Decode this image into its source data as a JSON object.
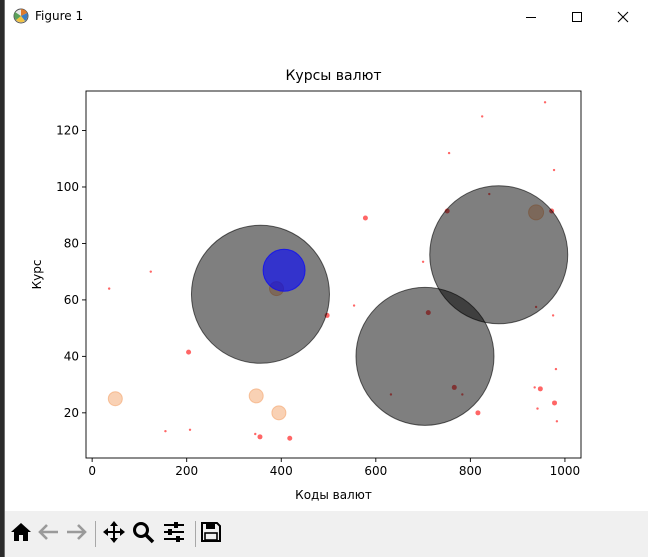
{
  "window": {
    "title": "Figure 1",
    "icons": [
      "matplotlib-icon",
      "minimize-icon",
      "maximize-icon",
      "close-icon"
    ]
  },
  "toolbar": {
    "buttons": [
      {
        "name": "home-icon"
      },
      {
        "name": "back-icon"
      },
      {
        "name": "forward-icon"
      },
      {
        "name": "pan-icon"
      },
      {
        "name": "zoom-icon"
      },
      {
        "name": "configure-subplots-icon"
      },
      {
        "name": "save-icon"
      }
    ]
  },
  "chart_data": {
    "type": "scatter",
    "title": "Курсы валют",
    "xlabel": "Коды валют",
    "ylabel": "Курс",
    "xlim": [
      -13,
      1034
    ],
    "ylim": [
      4,
      134
    ],
    "xticks": [
      0,
      200,
      400,
      600,
      800,
      1000
    ],
    "yticks": [
      20,
      40,
      60,
      80,
      100,
      120
    ],
    "grid": false,
    "series": [
      {
        "color": "#ff0000",
        "alpha": 0.6,
        "points": [
          {
            "x": 36,
            "y": 64,
            "r": 1.2
          },
          {
            "x": 124,
            "y": 70,
            "r": 1.2
          },
          {
            "x": 155,
            "y": 13.5,
            "r": 1.2
          },
          {
            "x": 204,
            "y": 41.5,
            "r": 2.5
          },
          {
            "x": 207,
            "y": 14,
            "r": 1.2
          },
          {
            "x": 345,
            "y": 12.5,
            "r": 1.2
          },
          {
            "x": 355,
            "y": 11.5,
            "r": 2.5
          },
          {
            "x": 418,
            "y": 11,
            "r": 2.5
          },
          {
            "x": 497,
            "y": 54.5,
            "r": 2.5
          },
          {
            "x": 554,
            "y": 58,
            "r": 1.2
          },
          {
            "x": 578,
            "y": 89,
            "r": 2.5
          },
          {
            "x": 632,
            "y": 26.5,
            "r": 1.2
          },
          {
            "x": 700,
            "y": 73.5,
            "r": 1.2
          },
          {
            "x": 711,
            "y": 55.5,
            "r": 2.5
          },
          {
            "x": 751,
            "y": 91.5,
            "r": 2.5
          },
          {
            "x": 755,
            "y": 112,
            "r": 1.2
          },
          {
            "x": 766,
            "y": 29,
            "r": 2.5
          },
          {
            "x": 783,
            "y": 26.5,
            "r": 1.2
          },
          {
            "x": 816,
            "y": 20,
            "r": 2.5
          },
          {
            "x": 825,
            "y": 125,
            "r": 1.2
          },
          {
            "x": 840,
            "y": 97.5,
            "r": 1.2
          },
          {
            "x": 936,
            "y": 29,
            "r": 1.2
          },
          {
            "x": 939,
            "y": 57.5,
            "r": 1.2
          },
          {
            "x": 942,
            "y": 21.5,
            "r": 1.2
          },
          {
            "x": 948,
            "y": 28.5,
            "r": 2.5
          },
          {
            "x": 958,
            "y": 130,
            "r": 1.2
          },
          {
            "x": 972,
            "y": 91.5,
            "r": 2.5
          },
          {
            "x": 975,
            "y": 54.5,
            "r": 1.2
          },
          {
            "x": 977,
            "y": 106,
            "r": 1.2
          },
          {
            "x": 978,
            "y": 23.5,
            "r": 2.5
          },
          {
            "x": 981,
            "y": 35.5,
            "r": 1.2
          },
          {
            "x": 983,
            "y": 17,
            "r": 1.2
          }
        ]
      },
      {
        "color": "#f4a46a",
        "alpha": 0.5,
        "points": [
          {
            "x": 49,
            "y": 25,
            "r": 7
          },
          {
            "x": 347,
            "y": 26,
            "r": 7
          },
          {
            "x": 395,
            "y": 20,
            "r": 7
          },
          {
            "x": 390,
            "y": 64,
            "r": 7
          },
          {
            "x": 939,
            "y": 91,
            "r": 7.5
          }
        ]
      },
      {
        "color": "#000000",
        "alpha": 0.5,
        "points": [
          {
            "x": 356,
            "y": 62,
            "r": 69
          },
          {
            "x": 704,
            "y": 40,
            "r": 69
          },
          {
            "x": 860,
            "y": 76,
            "r": 69
          }
        ]
      },
      {
        "color": "#0000ff",
        "alpha": 0.6,
        "points": [
          {
            "x": 406,
            "y": 70.5,
            "r": 21
          }
        ]
      }
    ]
  }
}
